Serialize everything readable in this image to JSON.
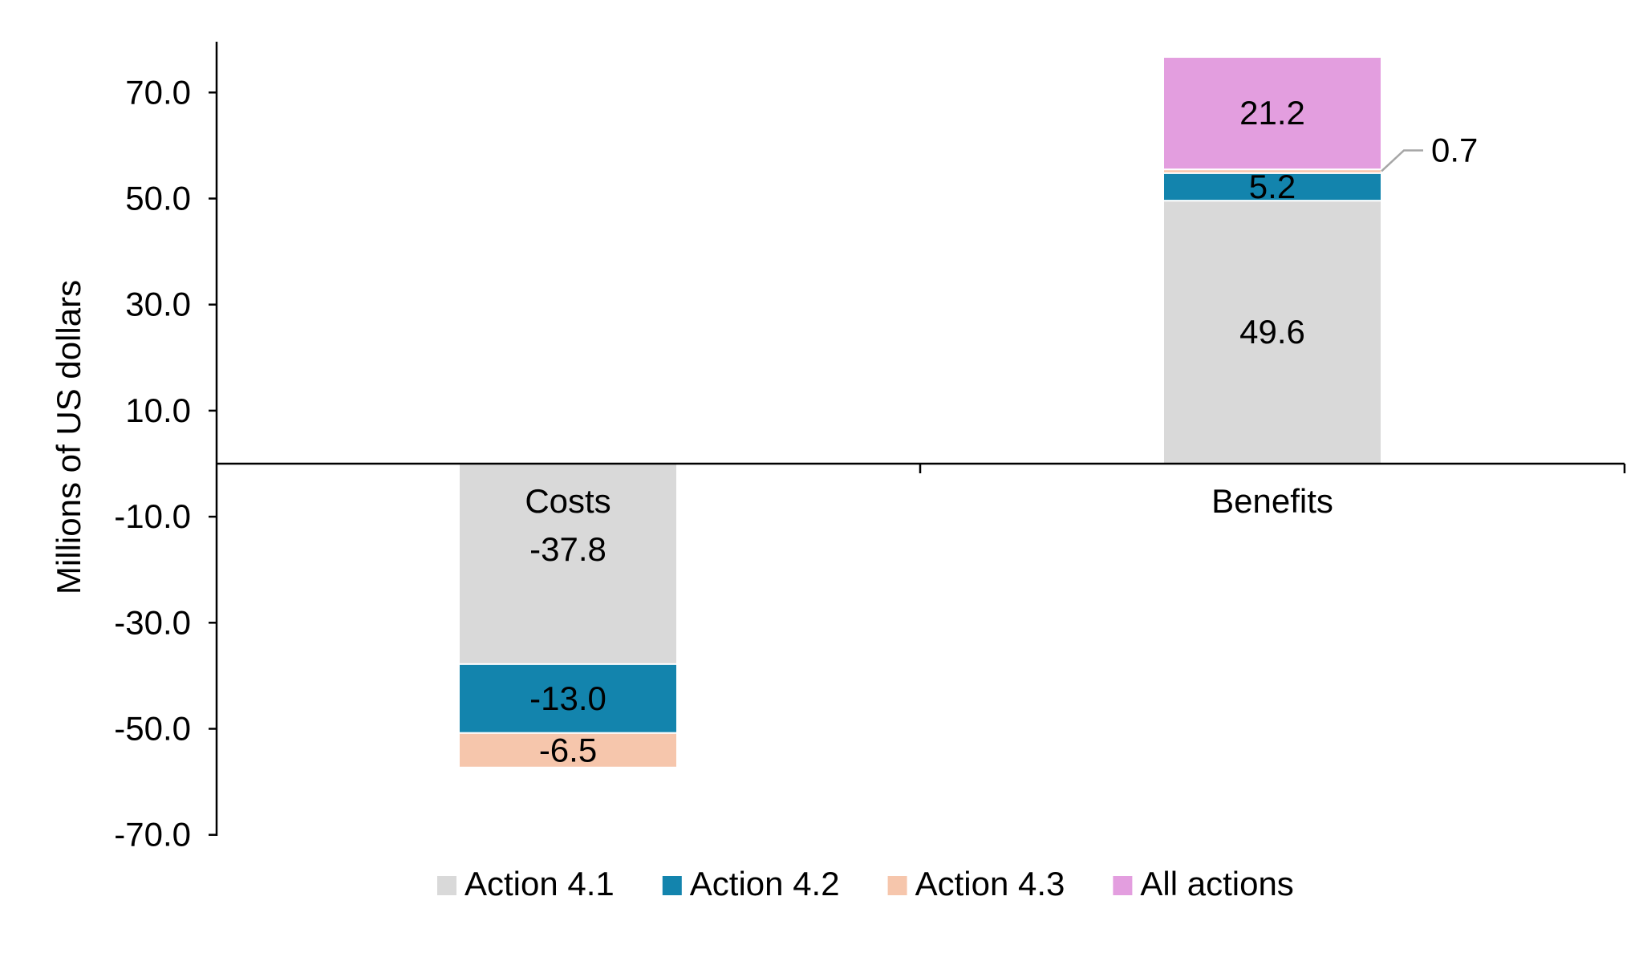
{
  "chart_data": {
    "type": "bar",
    "stacked": true,
    "categories": [
      "Costs",
      "Benefits"
    ],
    "ylabel": "Millions of US dollars",
    "ylim": [
      -70,
      80
    ],
    "yticks": [
      70,
      50,
      30,
      10,
      -10,
      -30,
      -50,
      -70
    ],
    "ytick_labels": [
      "70.0",
      "50.0",
      "30.0",
      "10.0",
      "-10.0",
      "-30.0",
      "-50.0",
      "-70.0"
    ],
    "legend_position": "bottom",
    "grid": false,
    "series": [
      {
        "name": "Action 4.1",
        "color": "#d9d9d9",
        "values": [
          -37.8,
          49.6
        ],
        "labels": [
          "-37.8",
          "49.6"
        ]
      },
      {
        "name": "Action 4.2",
        "color": "#1384ad",
        "values": [
          -13.0,
          5.2
        ],
        "labels": [
          "-13.0",
          "5.2"
        ]
      },
      {
        "name": "Action 4.3",
        "color": "#f6c6ac",
        "values": [
          -6.5,
          0.7
        ],
        "labels": [
          "-6.5",
          "0.7"
        ]
      },
      {
        "name": "All actions",
        "color": "#e39edf",
        "values": [
          null,
          21.2
        ],
        "labels": [
          "",
          "21.2"
        ]
      }
    ]
  }
}
